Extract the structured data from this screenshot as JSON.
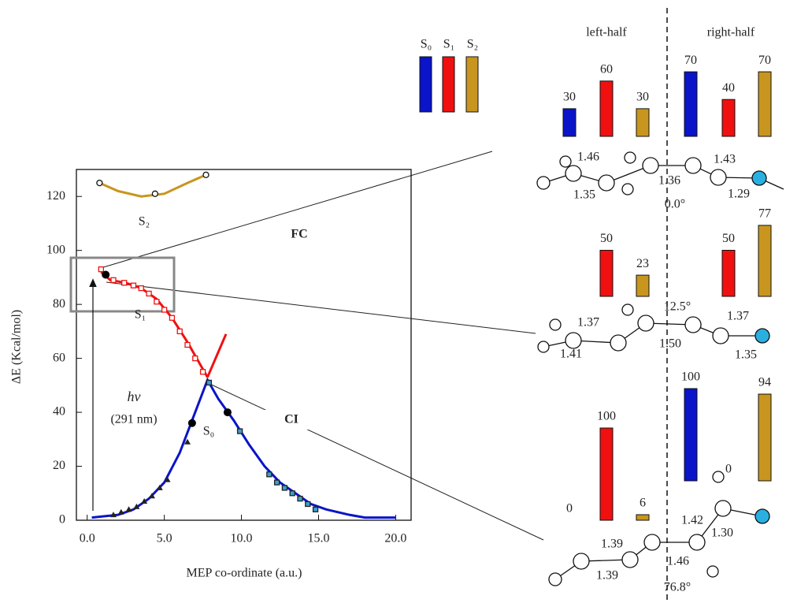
{
  "chart_data": {
    "type": "line",
    "x_label": "MEP co-ordinate (a.u.)",
    "y_label": "ΔE (Kcal/mol)",
    "xlim": [
      -0.7,
      21
    ],
    "ylim": [
      0,
      130
    ],
    "xticks": [
      {
        "value": 0,
        "label": "0.0"
      },
      {
        "value": 5,
        "label": "5.0"
      },
      {
        "value": 10,
        "label": "10.0"
      },
      {
        "value": 15,
        "label": "15.0"
      },
      {
        "value": 20,
        "label": "20.0"
      }
    ],
    "yticks": [
      0,
      20,
      40,
      60,
      80,
      100,
      120
    ],
    "annotations": [
      "FC",
      "CI",
      "hν",
      "(291 nm)"
    ],
    "series": [
      {
        "name": "S₀",
        "color": "#0a14c8",
        "x": [
          0.3,
          2,
          3,
          4,
          5,
          6,
          7,
          7.8,
          8.5,
          9.5,
          10.5,
          11.5,
          12.5,
          13.5,
          14.5,
          15.5,
          17,
          18,
          20
        ],
        "values": [
          1,
          2,
          4,
          8,
          14,
          25,
          40,
          52,
          45,
          37,
          28,
          20,
          14,
          10,
          6,
          4,
          2,
          1,
          1
        ]
      },
      {
        "name": "S₁",
        "color": "#f01010",
        "x": [
          0.9,
          1.5,
          2.5,
          3.5,
          4.5,
          5.5,
          6.5,
          7.3,
          7.8
        ],
        "values": [
          92,
          89,
          88,
          86,
          82,
          75,
          66,
          58,
          53
        ]
      },
      {
        "name": "S₂",
        "color": "#c8961e",
        "x": [
          0.8,
          2,
          3.5,
          5,
          6.5,
          7.7
        ],
        "values": [
          125,
          122,
          120,
          121,
          125,
          128
        ]
      },
      {
        "color": "#f01010",
        "x": [
          7.8,
          9
        ],
        "values": [
          53,
          69
        ]
      },
      {
        "color": "#f01010",
        "marker": "square",
        "x": [
          0.9,
          1.7,
          2.4,
          3,
          3.5,
          4,
          4.5,
          5,
          5.5,
          6,
          6.5,
          7,
          7.5
        ],
        "values": [
          93,
          89,
          88,
          87,
          86,
          84,
          81,
          78,
          75,
          70,
          65,
          60,
          55
        ]
      },
      {
        "color": "#222",
        "marker": "triangle",
        "x": [
          1.7,
          2.2,
          2.7,
          3.2,
          3.7,
          4.2,
          4.7,
          5.2,
          6.5
        ],
        "values": [
          2,
          3,
          4,
          5,
          7,
          9,
          12,
          15,
          29
        ]
      },
      {
        "color": "#3aa0d0",
        "marker": "square",
        "x": [
          7.9,
          9.9,
          11.8,
          12.3,
          12.8,
          13.3,
          13.8,
          14.3,
          14.8
        ],
        "values": [
          51,
          33,
          17,
          14,
          12,
          10,
          8,
          6,
          4
        ]
      },
      {
        "color": "#c8961e",
        "marker": "circle",
        "x": [
          0.8,
          4.4,
          7.7
        ],
        "values": [
          125,
          121,
          128
        ]
      },
      {
        "color": "#000",
        "marker": "dot",
        "x": [
          1.2,
          6.8,
          9.1
        ],
        "values": [
          91,
          36,
          40
        ]
      }
    ]
  },
  "diagram": {
    "legend": [
      "S₀",
      "S₁",
      "S₂"
    ],
    "colors": [
      "#0a14c8",
      "#f01010",
      "#c8961e"
    ],
    "headers": [
      "left-half",
      "right-half"
    ],
    "rows": [
      {
        "left": [
          30,
          60,
          30
        ],
        "right": [
          70,
          40,
          70
        ],
        "labels": [
          "1.46",
          "1.43",
          "1.35",
          "1.36",
          "1.29",
          "0.0°"
        ]
      },
      {
        "left": [
          null,
          50,
          23
        ],
        "right": [
          null,
          50,
          77
        ],
        "labels": [
          "12.5°",
          "1.37",
          "1.37",
          "1.50",
          "1.41",
          "1.35"
        ]
      },
      {
        "left": [
          0,
          100,
          6
        ],
        "right": [
          100,
          0,
          94
        ],
        "labels": [
          "1.42",
          "1.30",
          "1.39",
          "1.39",
          "1.46",
          "76.8°"
        ]
      }
    ]
  }
}
